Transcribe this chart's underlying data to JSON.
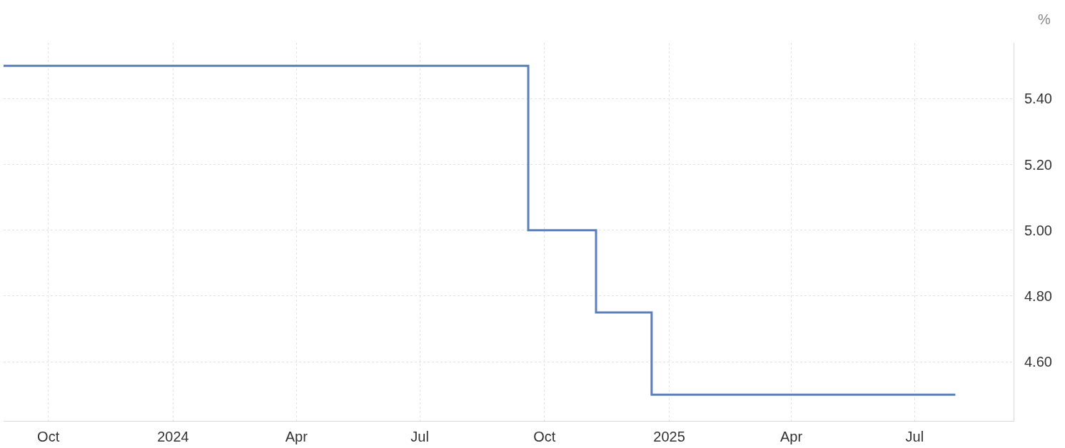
{
  "chart_data": {
    "type": "step",
    "ylabel": "%",
    "x": [
      "2023-08-29",
      "2024-09-19",
      "2024-11-08",
      "2024-12-19",
      "2025-07-31"
    ],
    "series": [
      {
        "color": "#5a7fba",
        "values": [
          5.5,
          5.0,
          4.75,
          4.5,
          4.5
        ]
      }
    ],
    "xlim": [
      "2023-08-29",
      "2025-09-12"
    ],
    "xticks": [
      {
        "value": "2023-10-01",
        "label": "Oct"
      },
      {
        "value": "2024-01-01",
        "label": "2024"
      },
      {
        "value": "2024-04-01",
        "label": "Apr"
      },
      {
        "value": "2024-07-01",
        "label": "Jul"
      },
      {
        "value": "2024-10-01",
        "label": "Oct"
      },
      {
        "value": "2025-01-01",
        "label": "2025"
      },
      {
        "value": "2025-04-01",
        "label": "Apr"
      },
      {
        "value": "2025-07-01",
        "label": "Jul"
      }
    ],
    "ylim": [
      4.42,
      5.57
    ],
    "yticks": [
      {
        "value": 4.6,
        "label": "4.60"
      },
      {
        "value": 4.8,
        "label": "4.80"
      },
      {
        "value": 5.0,
        "label": "5.00"
      },
      {
        "value": 5.2,
        "label": "5.20"
      },
      {
        "value": 5.4,
        "label": "5.40"
      }
    ],
    "grid": true,
    "line_style": "solid",
    "marker": "none"
  }
}
